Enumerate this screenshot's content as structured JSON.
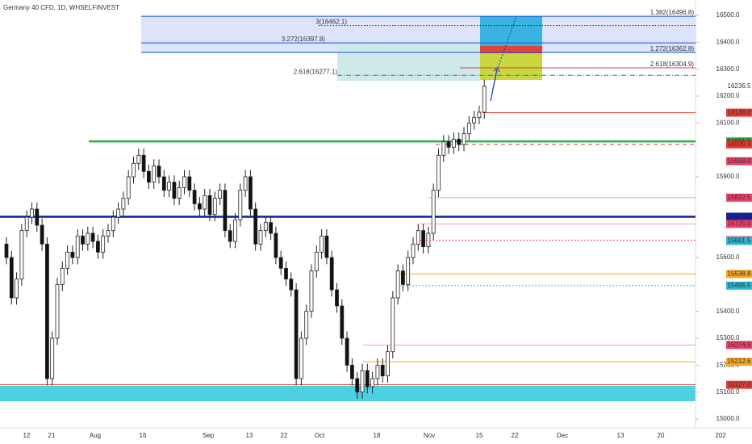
{
  "header": {
    "title": "Germany 40 CFD, 1D, WHSELFINVEST"
  },
  "chart_data": {
    "type": "candlestick",
    "ylim": [
      15000,
      16500
    ],
    "yticks": [
      15000,
      15100,
      15200,
      15300,
      15400,
      15600,
      15900,
      16100,
      16200,
      16300,
      16400,
      16500
    ],
    "ytick_labels": [
      "15000.0",
      "15100.0",
      "15200.0",
      "15300.0",
      "15400.0",
      "15600.0",
      "15900.0",
      "16100.0",
      "16200.0",
      "16300.0",
      "16400.0",
      "16500.0"
    ],
    "categories": [
      "12",
      "21",
      "Aug",
      "16",
      "Sep",
      "13",
      "22",
      "Oct",
      "18",
      "Nov",
      "15",
      "22",
      "Dec",
      "13",
      "20",
      "202"
    ],
    "open": [
      15650,
      15600,
      15450,
      15520,
      15700,
      15750,
      15780,
      15720,
      15650,
      15150,
      15300,
      15500,
      15560,
      15620,
      15600,
      15680,
      15650,
      15690,
      15660,
      15620,
      15680,
      15700,
      15750,
      15780,
      15820,
      15900,
      15950,
      15980,
      15920,
      15880,
      15940,
      15900,
      15850,
      15880,
      15820,
      15860,
      15900,
      15850,
      15800,
      15780,
      15830,
      15760,
      15820,
      15850,
      15700,
      15660,
      15740,
      15850,
      15900,
      15780,
      15650,
      15700,
      15730,
      15690,
      15600,
      15560,
      15520,
      15480,
      15150,
      15300,
      15400,
      15550,
      15620,
      15680,
      15600,
      15480,
      15420,
      15300,
      15200,
      15150,
      15100,
      15180,
      15120,
      15150,
      15200,
      15160,
      15250,
      15450,
      15550,
      15500,
      15600,
      15650,
      15700,
      15640,
      15690,
      15850,
      15980,
      16030,
      16010,
      16040,
      16020,
      16060,
      16100,
      16120,
      16140
    ],
    "high": [
      15675,
      15625,
      15545,
      15725,
      15775,
      15805,
      15805,
      15745,
      15675,
      15325,
      15525,
      15585,
      15645,
      15645,
      15705,
      15705,
      15715,
      15715,
      15685,
      15705,
      15725,
      15775,
      15805,
      15845,
      15925,
      15975,
      16005,
      16005,
      15945,
      15965,
      15965,
      15925,
      15905,
      15905,
      15885,
      15925,
      15925,
      15875,
      15825,
      15855,
      15855,
      15845,
      15875,
      15875,
      15725,
      15765,
      15875,
      15925,
      15925,
      15805,
      15725,
      15755,
      15755,
      15715,
      15625,
      15585,
      15545,
      15505,
      15325,
      15425,
      15575,
      15645,
      15705,
      15705,
      15625,
      15505,
      15445,
      15325,
      15225,
      15175,
      15205,
      15205,
      15175,
      15225,
      15225,
      15275,
      15475,
      15575,
      15575,
      15625,
      15675,
      15725,
      15725,
      15715,
      15875,
      16005,
      16055,
      16055,
      16065,
      16065,
      16085,
      16125,
      16145,
      16165,
      16261
    ],
    "low": [
      15575,
      15425,
      15425,
      15495,
      15675,
      15725,
      15695,
      15625,
      15125,
      15125,
      15275,
      15475,
      15535,
      15575,
      15575,
      15625,
      15625,
      15635,
      15595,
      15595,
      15655,
      15675,
      15725,
      15755,
      15795,
      15875,
      15925,
      15895,
      15855,
      15855,
      15875,
      15825,
      15825,
      15795,
      15795,
      15835,
      15825,
      15775,
      15755,
      15755,
      15735,
      15735,
      15795,
      15675,
      15635,
      15635,
      15715,
      15825,
      15755,
      15625,
      15625,
      15675,
      15665,
      15575,
      15535,
      15495,
      15455,
      15125,
      15125,
      15275,
      15375,
      15525,
      15595,
      15575,
      15455,
      15395,
      15275,
      15175,
      15125,
      15075,
      15075,
      15095,
      15095,
      15125,
      15135,
      15135,
      15225,
      15425,
      15475,
      15475,
      15575,
      15625,
      15615,
      15615,
      15665,
      15825,
      15955,
      15985,
      15985,
      15995,
      15995,
      16035,
      16075,
      16095,
      16115
    ],
    "close": [
      15600,
      15450,
      15520,
      15700,
      15750,
      15780,
      15720,
      15650,
      15150,
      15300,
      15500,
      15560,
      15620,
      15600,
      15680,
      15650,
      15690,
      15660,
      15620,
      15680,
      15700,
      15750,
      15780,
      15820,
      15900,
      15950,
      15980,
      15920,
      15880,
      15940,
      15900,
      15850,
      15880,
      15820,
      15860,
      15900,
      15850,
      15800,
      15780,
      15830,
      15760,
      15820,
      15850,
      15700,
      15660,
      15740,
      15850,
      15900,
      15780,
      15650,
      15700,
      15730,
      15690,
      15600,
      15560,
      15520,
      15480,
      15150,
      15300,
      15400,
      15550,
      15620,
      15680,
      15600,
      15480,
      15420,
      15300,
      15200,
      15150,
      15100,
      15180,
      15120,
      15150,
      15200,
      15160,
      15250,
      15450,
      15550,
      15500,
      15600,
      15650,
      15700,
      15640,
      15690,
      15850,
      15980,
      16030,
      16010,
      16040,
      16020,
      16060,
      16100,
      16120,
      16140,
      16236
    ],
    "last_price": 16236.5,
    "levels": [
      {
        "value": 16138.2,
        "color": "#e53935",
        "style": "solid"
      },
      {
        "value": 16031.5,
        "color": "#26b24a",
        "style": "thick"
      },
      {
        "value": 16021.7,
        "color": "#111111",
        "style": "none"
      },
      {
        "value": 16020.4,
        "color": "#e53935",
        "style": "dashed"
      },
      {
        "value": 15958.0,
        "label": "15958.0",
        "color": "#e8416a",
        "style": "none"
      },
      {
        "value": 15822.5,
        "color": "#e8416a",
        "style": "thin"
      },
      {
        "value": 15751.5,
        "color": "#0d1e9e",
        "style": "thick"
      },
      {
        "value": 15725.0,
        "label": "15725.0",
        "color": "#e8416a",
        "style": "thin"
      },
      {
        "value": 15664.5,
        "color": "#e8416a",
        "style": "dotted"
      },
      {
        "value": 15661.5,
        "color": "#2bb6d4",
        "style": "none"
      },
      {
        "value": 15538.8,
        "color": "#f5a623",
        "style": "solid"
      },
      {
        "value": 15495.5,
        "color": "#2bb6d4",
        "style": "dotted"
      },
      {
        "value": 15274.9,
        "color": "#e8416a",
        "style": "thin"
      },
      {
        "value": 15212.6,
        "color": "#f5a623",
        "style": "solid"
      },
      {
        "value": 15127.0,
        "label": "15127.0",
        "color": "#e53935",
        "style": "solid"
      }
    ],
    "annotations": [
      {
        "text": "1.382(16496.8)",
        "price": 16496.8
      },
      {
        "text": "3(16462.1)",
        "price": 16462.1
      },
      {
        "text": "3.272(16397.8)",
        "price": 16397.8
      },
      {
        "text": "1.272(16362.8)",
        "price": 16362.8
      },
      {
        "text": "2.618(16304.9)",
        "price": 16304.9
      },
      {
        "text": "2.618(16277.1)",
        "price": 16277.1
      }
    ]
  }
}
